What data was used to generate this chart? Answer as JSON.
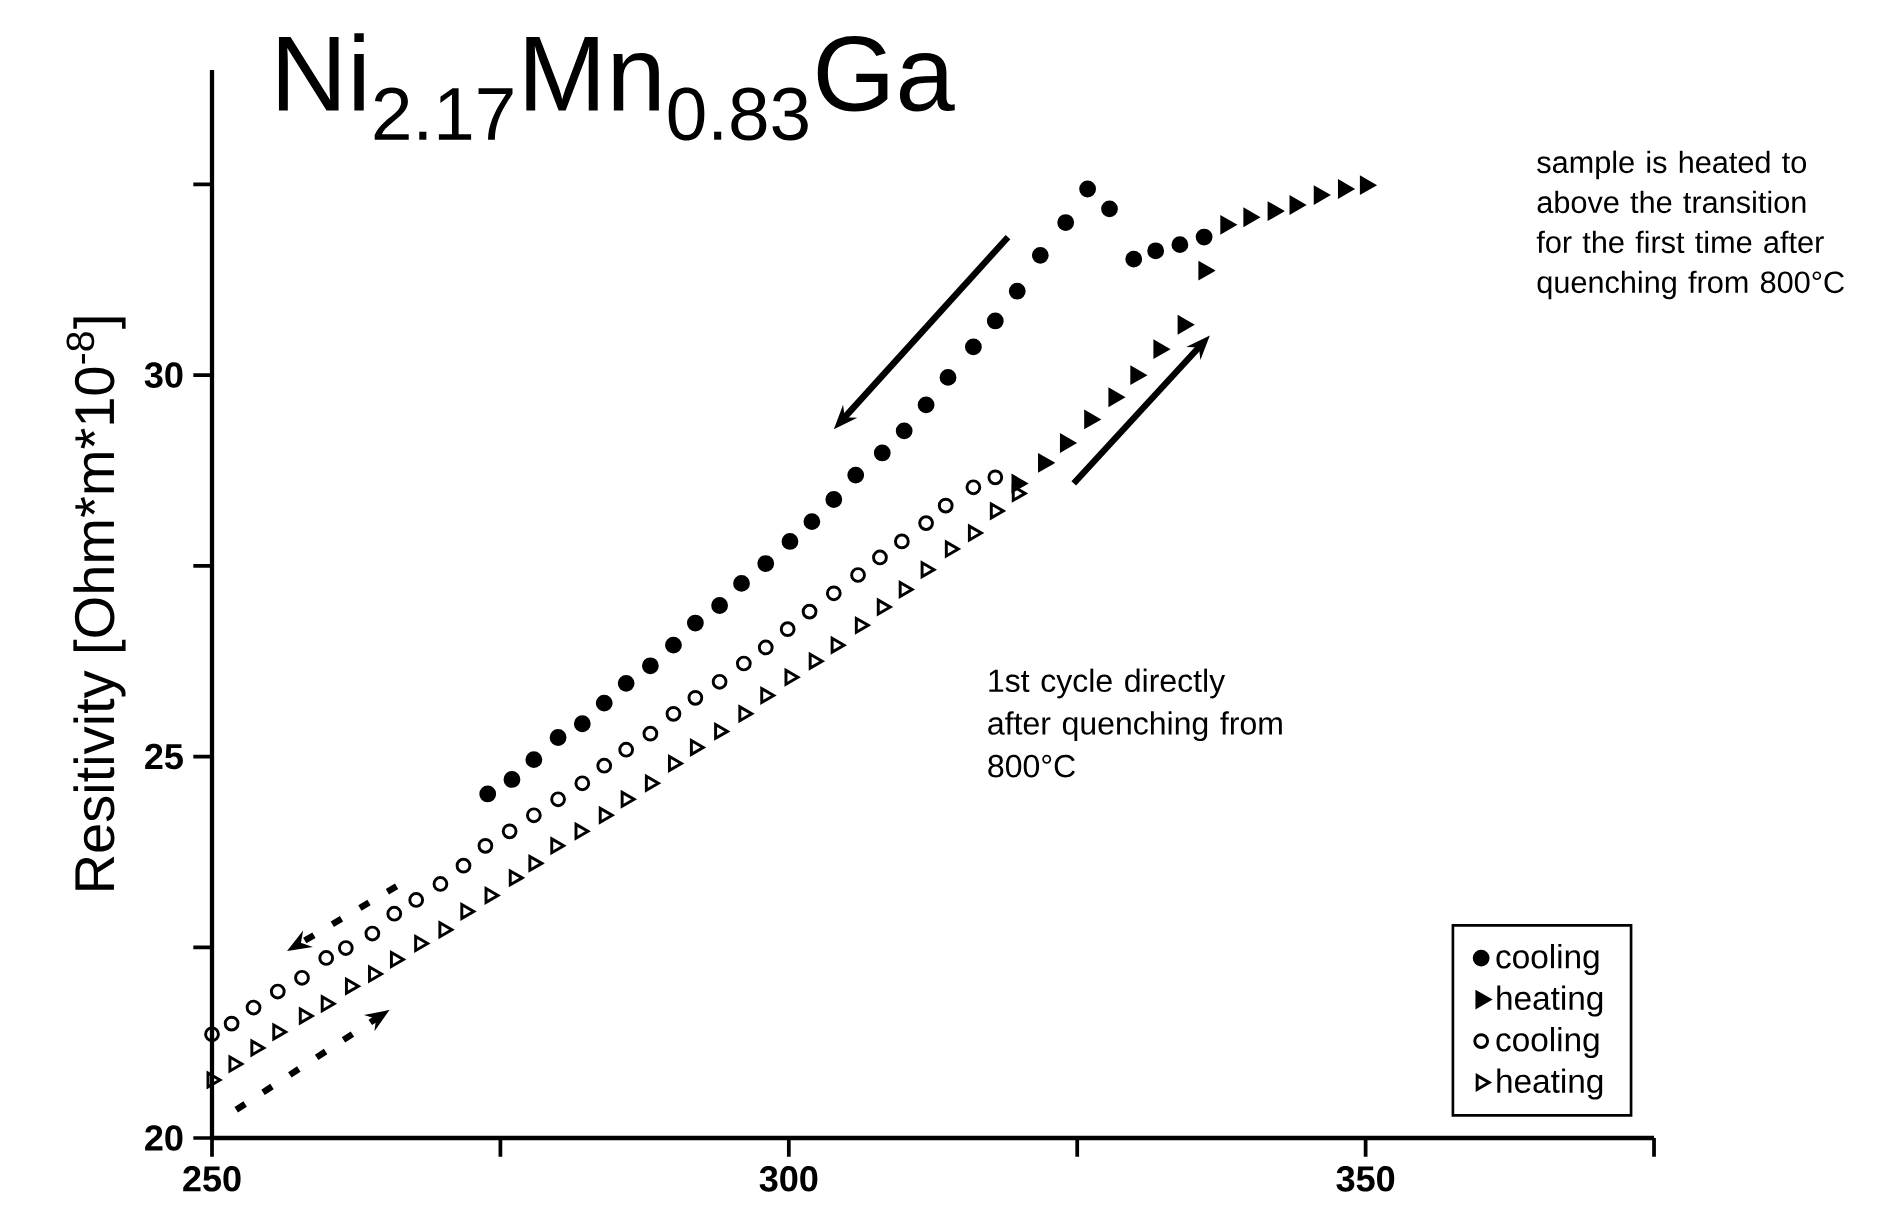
{
  "chart_data": {
    "type": "scatter",
    "title": "Ni$_{2.17}$Mn$_{0.83}$Ga",
    "ylabel": "Resitivity [Ohm*m*10$^{-8}$]",
    "xlim": [
      250,
      375
    ],
    "xticks": [
      250,
      {
        "value": 275,
        "label": null
      },
      300,
      {
        "value": 325,
        "label": null
      },
      350,
      {
        "value": 375,
        "label": null
      }
    ],
    "ylim": [
      20,
      34
    ],
    "yticks": [
      20,
      {
        "value": 22.5,
        "label": null
      },
      25,
      {
        "value": 27.5,
        "label": null
      },
      30,
      {
        "value": 32.5,
        "label": null
      }
    ],
    "legend": "bottom right",
    "annotations": [
      "sample is heated to above the transition for the first time after quenching from 800°C",
      "1st cycle directly after quenching from 800°C"
    ],
    "series": [
      {
        "name": "cooling",
        "color": "#000000",
        "marker": "circle",
        "x": [
          273.9,
          276.0,
          277.9,
          280.0,
          282.1,
          284.0,
          285.9,
          288.0,
          290.0,
          291.9,
          294.0,
          295.9,
          298.0,
          300.1,
          302.0,
          303.9,
          305.8,
          308.1,
          310.0,
          311.9,
          313.8,
          316.0,
          317.9,
          319.8,
          321.8,
          324.0,
          325.9,
          327.8,
          329.9,
          331.8,
          333.9,
          336.0
        ],
        "values": [
          24.51,
          24.7,
          24.96,
          25.25,
          25.43,
          25.7,
          25.96,
          26.19,
          26.46,
          26.75,
          26.98,
          27.27,
          27.53,
          27.82,
          28.08,
          28.37,
          28.69,
          28.98,
          29.27,
          29.61,
          29.97,
          30.37,
          30.71,
          31.1,
          31.57,
          32.0,
          32.44,
          32.18,
          31.52,
          31.63,
          31.71,
          31.81
        ]
      },
      {
        "name": "heating",
        "color": "#000000",
        "marker": "triangle",
        "x": [
          319.8,
          322.1,
          324.0,
          326.1,
          328.2,
          330.1,
          332.1,
          334.2,
          336.0,
          337.9,
          339.9,
          342.0,
          343.9,
          346.0,
          348.1,
          350.0
        ],
        "values": [
          28.58,
          28.85,
          29.11,
          29.42,
          29.71,
          30.0,
          30.34,
          30.66,
          31.37,
          31.97,
          32.07,
          32.15,
          32.23,
          32.36,
          32.44,
          32.49
        ]
      },
      {
        "name": "cooling",
        "color": "#000000",
        "marker": "circle",
        "x": [
          250.0,
          251.7,
          253.6,
          255.7,
          257.8,
          259.9,
          261.6,
          263.9,
          265.8,
          267.7,
          269.8,
          271.8,
          273.7,
          275.8,
          277.9,
          280.0,
          282.1,
          284.0,
          285.9,
          288.0,
          290.0,
          291.9,
          294.0,
          296.1,
          298.0,
          299.9,
          301.8,
          303.9,
          306.0,
          307.9,
          309.8,
          311.9,
          313.6,
          316.0,
          317.9
        ],
        "values": [
          21.36,
          21.5,
          21.71,
          21.92,
          22.1,
          22.36,
          22.49,
          22.68,
          22.94,
          23.12,
          23.33,
          23.57,
          23.83,
          24.02,
          24.23,
          24.44,
          24.65,
          24.88,
          25.09,
          25.3,
          25.56,
          25.77,
          25.98,
          26.22,
          26.43,
          26.67,
          26.9,
          27.14,
          27.38,
          27.61,
          27.82,
          28.06,
          28.29,
          28.53,
          28.66
        ]
      },
      {
        "name": "heating",
        "color": "#000000",
        "marker": "triangle",
        "x": [
          250.0,
          251.9,
          253.8,
          255.7,
          258.0,
          259.9,
          262.0,
          264.0,
          265.9,
          268.0,
          270.1,
          272.0,
          274.1,
          276.2,
          277.9,
          279.8,
          281.9,
          284.0,
          285.9,
          288.0,
          290.0,
          291.9,
          294.0,
          296.1,
          298.0,
          300.1,
          302.2,
          304.1,
          306.2,
          308.1,
          310.0,
          311.9,
          314.0,
          316.0,
          317.9,
          319.8
        ],
        "values": [
          20.76,
          20.97,
          21.18,
          21.39,
          21.6,
          21.76,
          21.99,
          22.15,
          22.34,
          22.55,
          22.73,
          22.97,
          23.18,
          23.41,
          23.6,
          23.83,
          24.02,
          24.23,
          24.44,
          24.65,
          24.91,
          25.12,
          25.33,
          25.56,
          25.8,
          26.04,
          26.25,
          26.46,
          26.72,
          26.96,
          27.19,
          27.45,
          27.72,
          27.93,
          28.22,
          28.45
        ]
      }
    ]
  }
}
